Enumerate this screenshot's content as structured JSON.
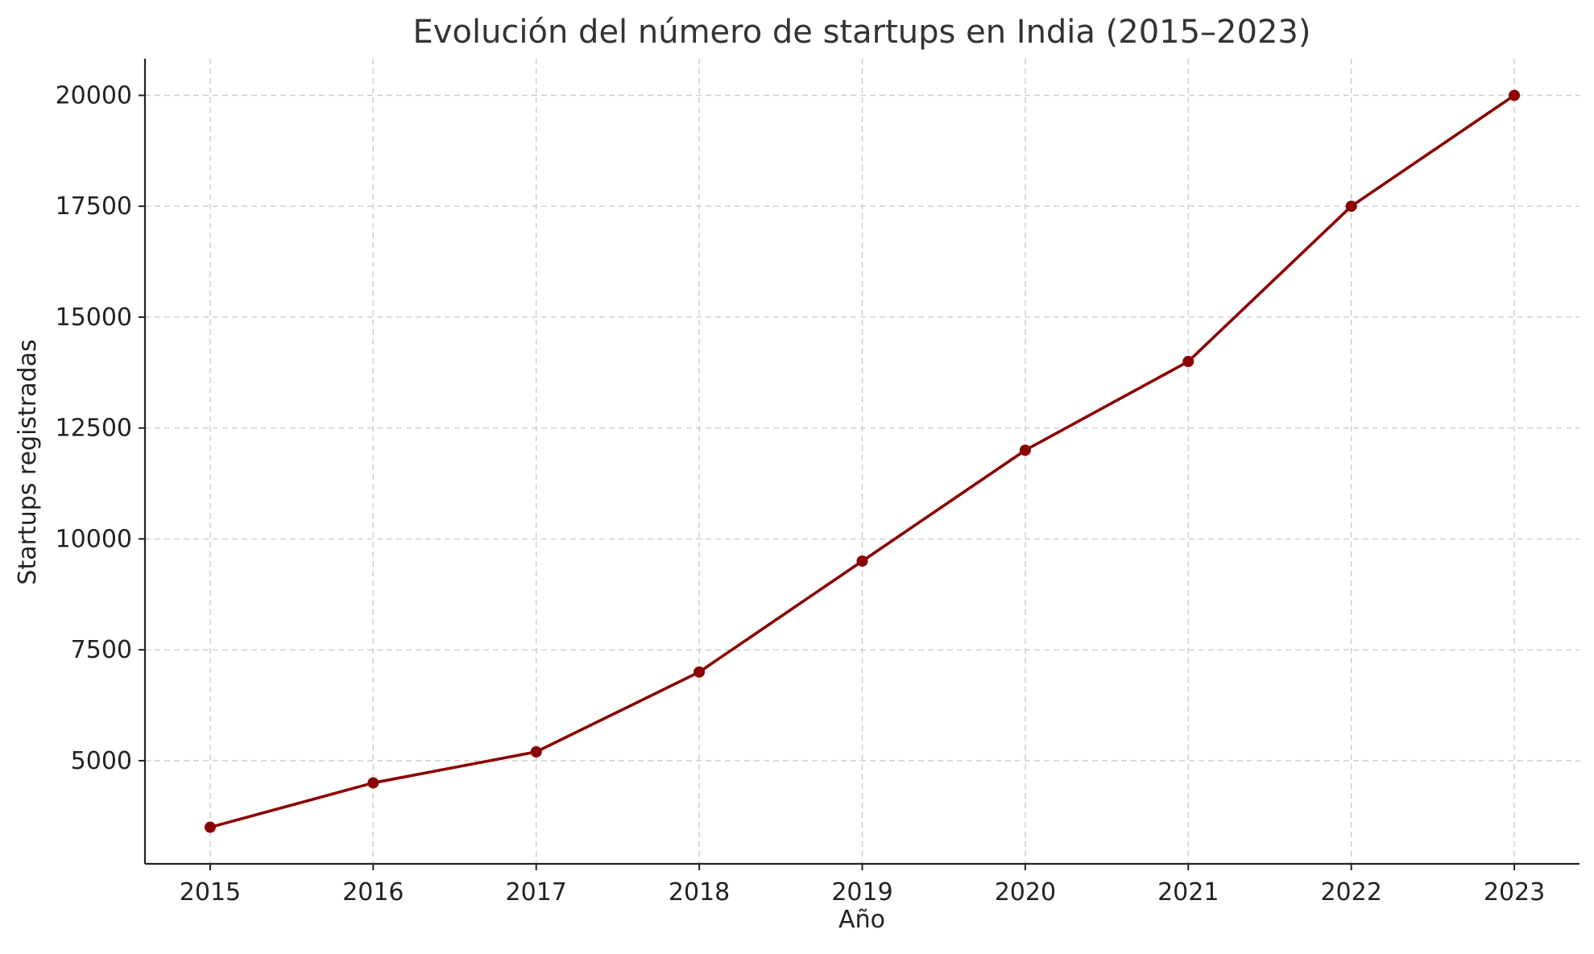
{
  "chart_data": {
    "type": "line",
    "title": "Evolución del número de startups en India (2015–2023)",
    "xlabel": "Año",
    "ylabel": "Startups registradas",
    "x": [
      2015,
      2016,
      2017,
      2018,
      2019,
      2020,
      2021,
      2022,
      2023
    ],
    "series": [
      {
        "values": [
          3500,
          4500,
          5200,
          7000,
          9500,
          12000,
          14000,
          17500,
          20000
        ],
        "color": "#8b0000",
        "marker": "circle"
      }
    ],
    "xlim": [
      2014.6,
      2023.4
    ],
    "ylim": [
      2675,
      20825
    ],
    "yticks": [
      5000,
      7500,
      10000,
      12500,
      15000,
      17500,
      20000
    ],
    "xticks": [
      2015,
      2016,
      2017,
      2018,
      2019,
      2020,
      2021,
      2022,
      2023
    ],
    "grid": true,
    "grid_style": "dashed",
    "legend": "none"
  }
}
